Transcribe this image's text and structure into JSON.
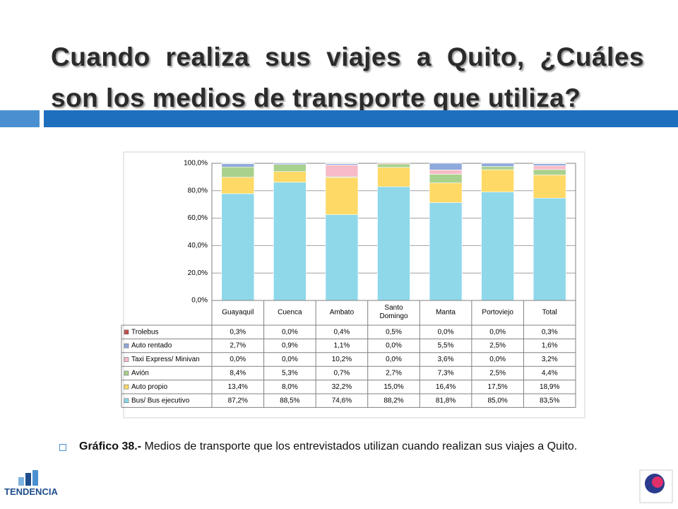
{
  "title": "Cuando realiza sus viajes a Quito, ¿Cuáles son los medios de transporte que utiliza?",
  "caption": {
    "label": "Gráfico 38.-",
    "text": "Medios de transporte que los entrevistados utilizan cuando realizan sus viajes a Quito."
  },
  "logo": "TENDENCIA",
  "chart_data": {
    "type": "bar",
    "stacked": "percent",
    "categories": [
      "Guayaquil",
      "Cuenca",
      "Ambato",
      "Santo Domingo",
      "Manta",
      "Portoviejo",
      "Total"
    ],
    "series": [
      {
        "name": "Trolebus",
        "color": "#c0504d",
        "values": [
          0.3,
          0.0,
          0.4,
          0.5,
          0.0,
          0.0,
          0.3
        ],
        "value_labels": [
          "0,3%",
          "0,0%",
          "0,4%",
          "0,5%",
          "0,0%",
          "0,0%",
          "0,3%"
        ]
      },
      {
        "name": "Auto rentado",
        "color": "#8ea9db",
        "values": [
          2.7,
          0.9,
          1.1,
          0.0,
          5.5,
          2.5,
          1.6
        ],
        "value_labels": [
          "2,7%",
          "0,9%",
          "1,1%",
          "0,0%",
          "5,5%",
          "2,5%",
          "1,6%"
        ]
      },
      {
        "name": "Taxi Express/ Minivan",
        "color": "#f7bcc8",
        "values": [
          0.0,
          0.0,
          10.2,
          0.0,
          3.6,
          0.0,
          3.2
        ],
        "value_labels": [
          "0,0%",
          "0,0%",
          "10,2%",
          "0,0%",
          "3,6%",
          "0,0%",
          "3,2%"
        ]
      },
      {
        "name": "Avión",
        "color": "#a9d18e",
        "values": [
          8.4,
          5.3,
          0.7,
          2.7,
          7.3,
          2.5,
          4.4
        ],
        "value_labels": [
          "8,4%",
          "5,3%",
          "0,7%",
          "2,7%",
          "7,3%",
          "2,5%",
          "4,4%"
        ]
      },
      {
        "name": "Auto propio",
        "color": "#ffd966",
        "values": [
          13.4,
          8.0,
          32.2,
          15.0,
          16.4,
          17.5,
          18.9
        ],
        "value_labels": [
          "13,4%",
          "8,0%",
          "32,2%",
          "15,0%",
          "16,4%",
          "17,5%",
          "18,9%"
        ]
      },
      {
        "name": "Bus/ Bus ejecutivo",
        "color": "#8ed8ea",
        "values": [
          87.2,
          88.5,
          74.6,
          88.2,
          81.8,
          85.0,
          83.5
        ],
        "value_labels": [
          "87,2%",
          "88,5%",
          "74,6%",
          "88,2%",
          "81,8%",
          "85,0%",
          "83,5%"
        ]
      }
    ],
    "ylim": [
      0,
      100
    ],
    "yticks": [
      {
        "value": 0,
        "label": "0,0%"
      },
      {
        "value": 20,
        "label": "20,0%"
      },
      {
        "value": 40,
        "label": "40,0%"
      },
      {
        "value": 60,
        "label": "60,0%"
      },
      {
        "value": 80,
        "label": "80,0%"
      },
      {
        "value": 100,
        "label": "100,0%"
      }
    ],
    "grid": true
  }
}
